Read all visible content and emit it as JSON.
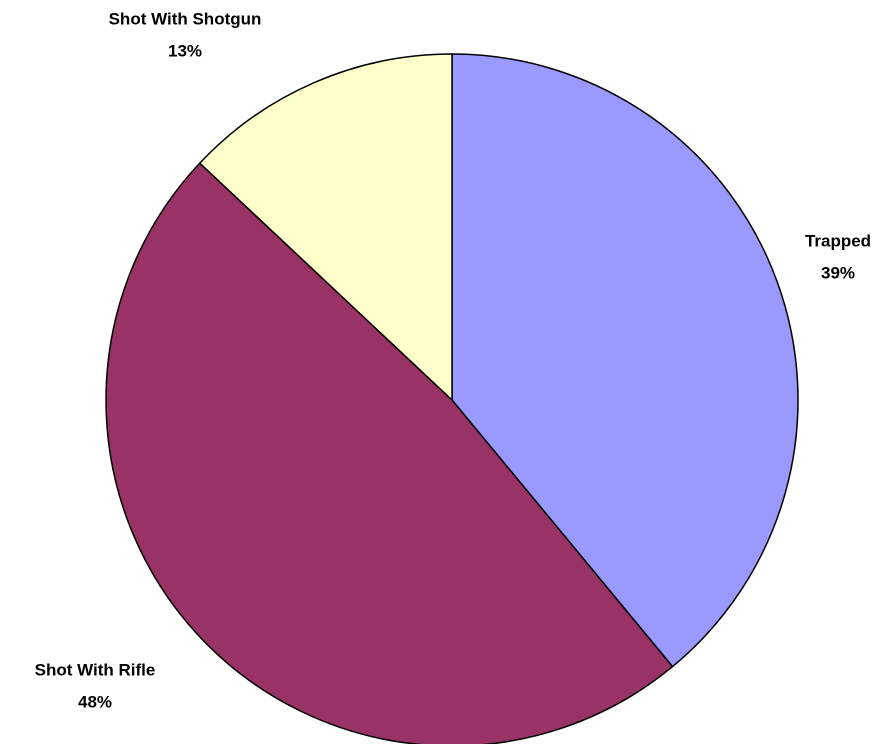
{
  "chart_data": {
    "type": "pie",
    "categories": [
      "Trapped",
      "Shot With Rifle",
      "Shot With Shotgun"
    ],
    "values": [
      39,
      48,
      13
    ],
    "value_labels": [
      "39%",
      "48%",
      "13%"
    ],
    "colors": [
      "#9999ff",
      "#993366",
      "#ffffcc"
    ]
  }
}
